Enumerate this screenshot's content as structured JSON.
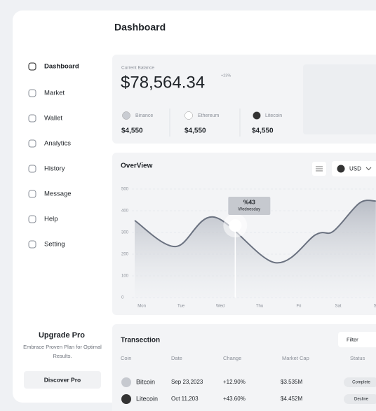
{
  "sidebar": {
    "nav": [
      "Dashboard",
      "Market",
      "Wallet",
      "Analytics",
      "History",
      "Message",
      "Help",
      "Setting"
    ],
    "upgrade": {
      "title": "Upgrade Pro",
      "text": "Embrace Proven Plan for Optimal Results.",
      "button": "Discover Pro"
    }
  },
  "header": {
    "title": "Dashboard"
  },
  "balance": {
    "label": "Current Balance",
    "amount": "$78,564.34",
    "change": "+23%",
    "coins": [
      {
        "name": "Binance",
        "value": "$4,550"
      },
      {
        "name": "Ethereum",
        "value": "$4,550"
      },
      {
        "name": "Litecoin",
        "value": "$4,550"
      }
    ]
  },
  "chart_data": {
    "type": "line",
    "title": "OverView",
    "currency": "USD",
    "color": "#6b7280",
    "x": [
      -0.18,
      0.86,
      1.84,
      3.39,
      4.43,
      4.88,
      5.54,
      5.96
    ],
    "values": [
      355,
      235,
      371,
      161,
      290,
      306,
      435,
      445
    ],
    "xlim": [
      -0.18,
      6
    ],
    "xticks": [
      {
        "value": 0,
        "label": "Mon"
      },
      {
        "value": 1,
        "label": "Tue"
      },
      {
        "value": 2,
        "label": "Wed"
      },
      {
        "value": 3,
        "label": "Thu"
      },
      {
        "value": 4,
        "label": "Fri"
      },
      {
        "value": 5,
        "label": "Sat"
      },
      {
        "value": 6,
        "label": "Sun"
      }
    ],
    "ylim": [
      0,
      500
    ],
    "yticks": [
      0,
      100,
      200,
      300,
      400,
      500
    ],
    "grid": true,
    "annotation": {
      "label": "%43",
      "sublabel": "Wednesday",
      "x": 2.38,
      "y": 332
    }
  },
  "transactions": {
    "title": "Transection",
    "filter": "Filter",
    "columns": [
      "Coin",
      "Date",
      "Change",
      "Market Cap",
      "Status"
    ],
    "rows": [
      [
        "Bitcoin",
        "Sep 23,2023",
        "+12.90%",
        "$3.535M",
        "Complete"
      ],
      [
        "Litecoin",
        "Oct 11,203",
        "+43.60%",
        "$4.452M",
        "Decline"
      ]
    ]
  }
}
